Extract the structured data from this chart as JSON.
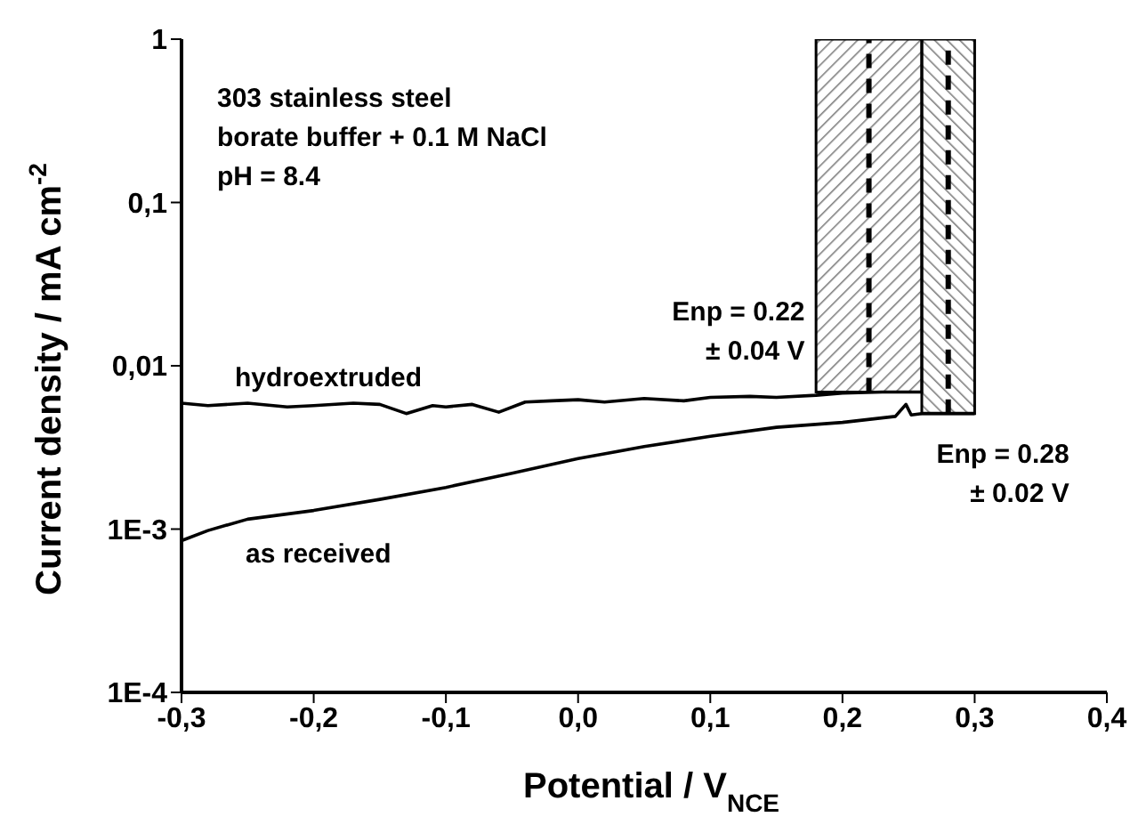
{
  "chart_data": {
    "type": "line",
    "xlabel": "Potential / V$_{NCE}$",
    "ylabel": "Current density / mA cm$^{-2}$",
    "log": "y",
    "marker": "none",
    "line_style": "solid",
    "xlim": [
      -0.3,
      0.4
    ],
    "xticks": [
      {
        "value": -0.3,
        "label": "-0,3"
      },
      {
        "value": -0.2,
        "label": "-0,2"
      },
      {
        "value": -0.1,
        "label": "-0,1"
      },
      {
        "value": 0,
        "label": "0,0"
      },
      {
        "value": 0.1,
        "label": "0,1"
      },
      {
        "value": 0.2,
        "label": "0,2"
      },
      {
        "value": 0.3,
        "label": "0,3"
      },
      {
        "value": 0.4,
        "label": "0,4"
      }
    ],
    "ylim": [
      0.0001,
      1
    ],
    "yticks": [
      {
        "value": 0.0001,
        "label": "1E-4"
      },
      {
        "value": 0.001,
        "label": "1E-3"
      },
      {
        "value": 0.01,
        "label": "0,01"
      },
      {
        "value": 0.1,
        "label": "0,1"
      },
      1
    ],
    "series": [
      {
        "name": "hydroextruded",
        "color": "#000000",
        "x": [
          -0.3,
          -0.28,
          -0.25,
          -0.22,
          -0.2,
          -0.17,
          -0.15,
          -0.13,
          -0.11,
          -0.1,
          -0.08,
          -0.06,
          -0.04,
          -0.02,
          0,
          0.02,
          0.05,
          0.08,
          0.1,
          0.13,
          0.15,
          0.18,
          0.2,
          0.23,
          0.26
        ],
        "values": [
          0.0059,
          0.0057,
          0.0059,
          0.0056,
          0.0057,
          0.0059,
          0.0058,
          0.0051,
          0.0057,
          0.0056,
          0.0058,
          0.0052,
          0.006,
          0.0061,
          0.0062,
          0.006,
          0.0063,
          0.0061,
          0.0064,
          0.0065,
          0.0064,
          0.0066,
          0.0068,
          0.0069,
          0.0069
        ]
      },
      {
        "name": "as received",
        "color": "#000000",
        "x": [
          -0.3,
          -0.28,
          -0.25,
          -0.2,
          -0.15,
          -0.1,
          -0.05,
          0,
          0.05,
          0.1,
          0.15,
          0.2,
          0.24,
          0.248,
          0.252,
          0.26,
          0.3
        ],
        "values": [
          0.00085,
          0.00098,
          0.00115,
          0.0013,
          0.00152,
          0.0018,
          0.0022,
          0.0027,
          0.0032,
          0.0037,
          0.0042,
          0.0045,
          0.0049,
          0.0058,
          0.005,
          0.0051,
          0.0051
        ]
      }
    ],
    "bands": [
      {
        "axis": "x",
        "from": 0.18,
        "to": 0.26,
        "color": "#000000"
      },
      {
        "axis": "x",
        "from": 0.26,
        "to": 0.3,
        "color": "#000000"
      }
    ],
    "ref_lines": [
      {
        "axis": "x",
        "value": 0.22,
        "label": "Enp = 0.22\n± 0.04 V",
        "line_style": "dashed",
        "color": "#000000"
      },
      {
        "axis": "x",
        "value": 0.28,
        "label": "Enp = 0.28\n± 0.02 V",
        "line_style": "dashed",
        "color": "#000000"
      }
    ],
    "annotations": [
      "303 stainless steel",
      "borate buffer + 0.1 M NaCl",
      "pH = 8.4"
    ]
  }
}
